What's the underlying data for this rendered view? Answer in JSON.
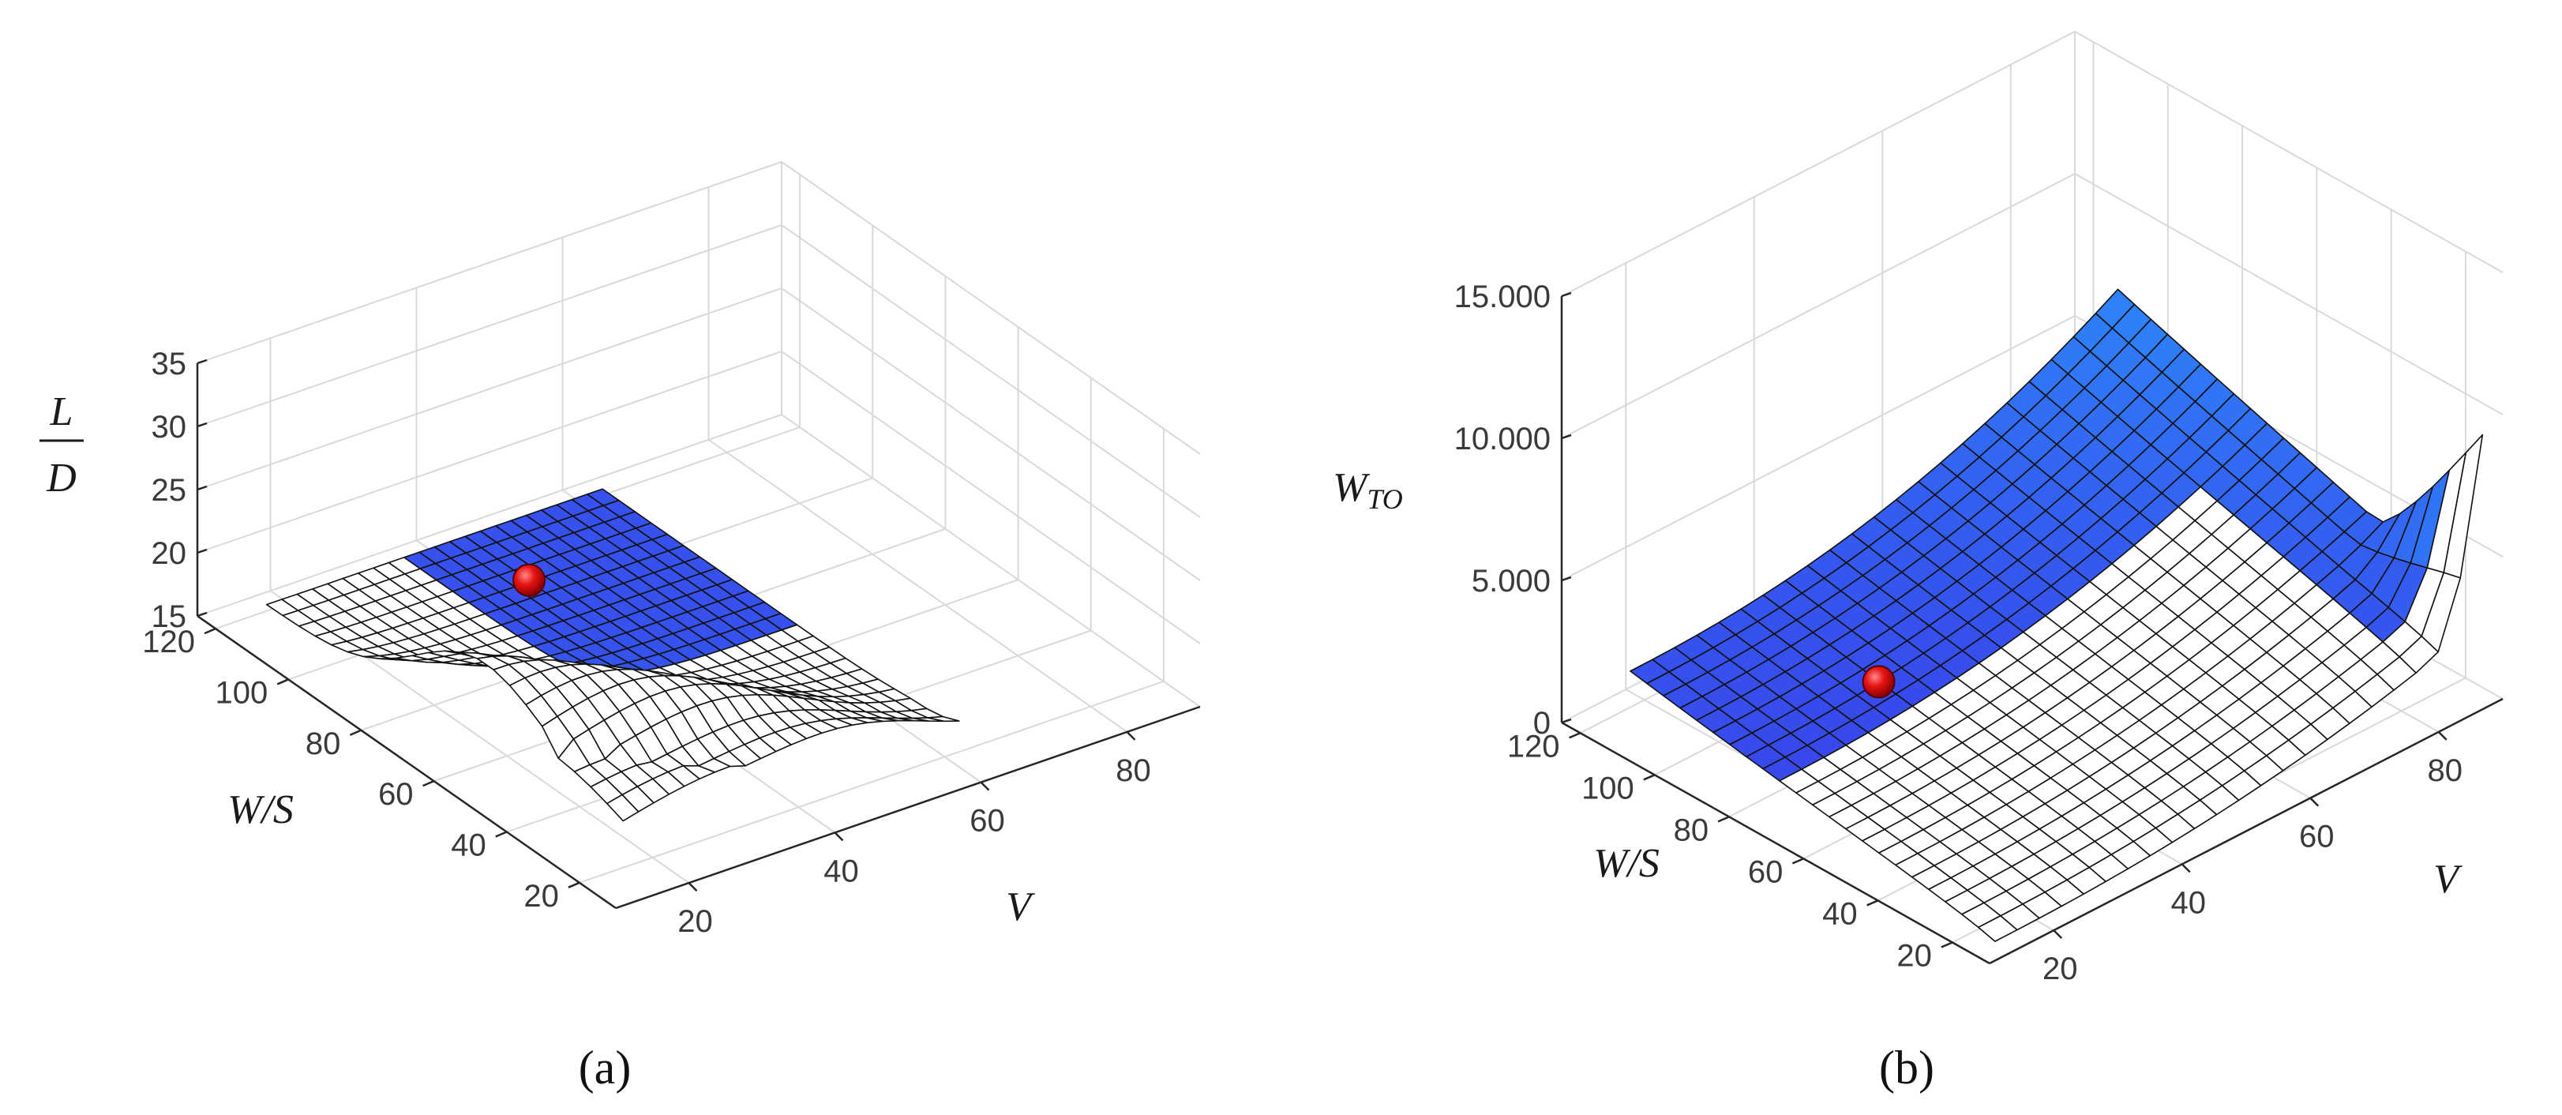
{
  "chart_data": [
    {
      "type": "surface",
      "panel_label": "(a)",
      "xlabel": "V",
      "ylabel": "W/S",
      "zlabel_num": "L",
      "zlabel_den": "D",
      "xticks": [
        "20",
        "40",
        "60",
        "80"
      ],
      "yticks": [
        "20",
        "40",
        "60",
        "80",
        "100",
        "120"
      ],
      "zticks": [
        "15",
        "20",
        "25",
        "30",
        "35"
      ],
      "xlim": [
        10,
        90
      ],
      "ylim": [
        10,
        125
      ],
      "zlim": [
        15,
        35
      ],
      "grid": true,
      "surface_colors": {
        "feasible": "#ffffff",
        "infeasible_low": "#3b34e6",
        "infeasible_high": "#2a9cff"
      },
      "optimum": {
        "V": 31,
        "W_S": 76,
        "value": 23.5,
        "color": "#e01010"
      }
    },
    {
      "type": "surface",
      "panel_label": "(b)",
      "xlabel": "V",
      "ylabel": "W/S",
      "zlabel_main": "W",
      "zlabel_sub": "TO",
      "xticks": [
        "20",
        "40",
        "60",
        "80"
      ],
      "yticks": [
        "20",
        "40",
        "60",
        "80",
        "100",
        "120"
      ],
      "zticks": [
        "0",
        "5.000",
        "10.000",
        "15.000"
      ],
      "xlim": [
        10,
        90
      ],
      "ylim": [
        10,
        125
      ],
      "zlim": [
        0,
        15000
      ],
      "grid": true,
      "surface_colors": {
        "feasible": "#ffffff",
        "infeasible_low": "#3b34e6",
        "infeasible_high": "#2a9cff"
      },
      "optimum": {
        "V": 31,
        "W_S": 76,
        "value": 2600,
        "color": "#e01010"
      }
    }
  ]
}
